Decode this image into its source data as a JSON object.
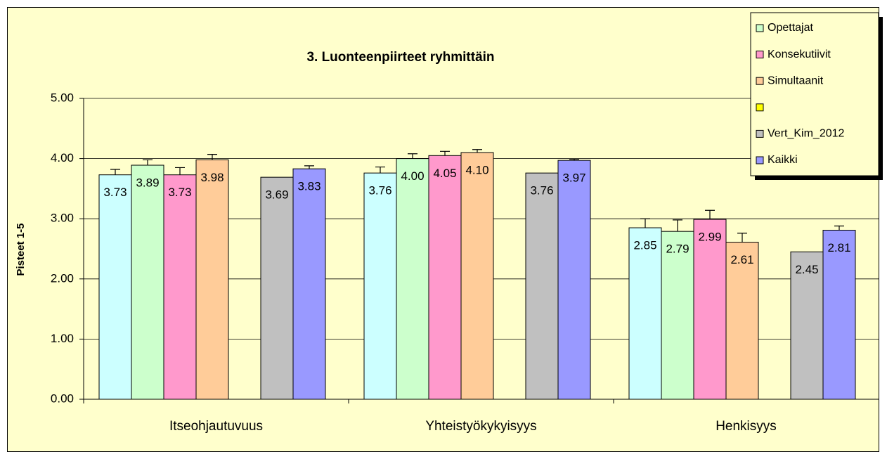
{
  "chart_data": {
    "type": "bar",
    "title": "3. Luonteenpiirteet ryhmittäin",
    "y_label": "Pisteet 1-5",
    "categories": [
      "Itseohjautuvuus",
      "Yhteistyökykyisyys",
      "Henkisyys"
    ],
    "ylim": [
      0,
      5
    ],
    "yticks": [
      {
        "value": 0,
        "label": "0.00"
      },
      {
        "value": 1,
        "label": "1.00"
      },
      {
        "value": 2,
        "label": "2.00"
      },
      {
        "value": 3,
        "label": "3.00"
      },
      {
        "value": 4,
        "label": "4.00"
      },
      {
        "value": 5,
        "label": "5.00"
      }
    ],
    "grid": true,
    "legend_position": "top-right",
    "series": [
      {
        "name": null,
        "legend": false,
        "color": "#ccffff",
        "values": [
          3.73,
          3.76,
          2.85
        ],
        "value_labels": [
          "3.73",
          "3.76",
          "2.85"
        ],
        "errors": [
          0.09,
          0.1,
          0.15
        ]
      },
      {
        "name": "Opettajat",
        "color": "#ccffcc",
        "values": [
          3.89,
          4.0,
          2.79
        ],
        "value_labels": [
          "3.89",
          "4.00",
          "2.79"
        ],
        "errors": [
          0.09,
          0.08,
          0.19
        ]
      },
      {
        "name": "Konsekutiivit",
        "color": "#ff99cc",
        "values": [
          3.73,
          4.05,
          2.99
        ],
        "value_labels": [
          "3.73",
          "4.05",
          "2.99"
        ],
        "errors": [
          0.12,
          0.07,
          0.15
        ]
      },
      {
        "name": "Simultaanit",
        "color": "#ffcc99",
        "values": [
          3.98,
          4.1,
          2.61
        ],
        "value_labels": [
          "3.98",
          "4.10",
          "2.61"
        ],
        "errors": [
          0.09,
          0.05,
          0.15
        ]
      },
      {
        "name": null,
        "color": "#ffff00",
        "values": [
          null,
          null,
          null
        ]
      },
      {
        "name": "Vert_Kim_2012",
        "color": "#c0c0c0",
        "values": [
          3.69,
          3.76,
          2.45
        ],
        "value_labels": [
          "3.69",
          "3.76",
          "2.45"
        ]
      },
      {
        "name": "Kaikki",
        "color": "#9999ff",
        "values": [
          3.83,
          3.97,
          2.81
        ],
        "value_labels": [
          "3.83",
          "3.97",
          "2.81"
        ],
        "errors": [
          0.05,
          0.02,
          0.07
        ]
      }
    ]
  }
}
